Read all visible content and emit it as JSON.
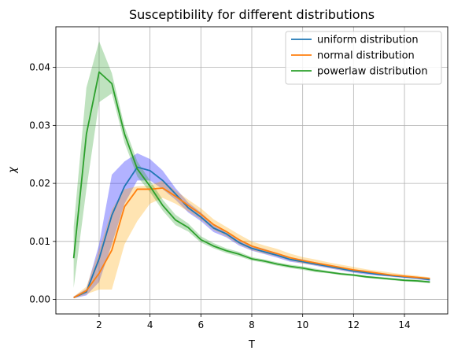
{
  "chart_data": {
    "type": "line",
    "title": "Susceptibility for different distributions",
    "xlabel": "T",
    "ylabel": "χ",
    "xlim": [
      0.3,
      15.7
    ],
    "ylim": [
      -0.0025,
      0.047
    ],
    "xticks": [
      2,
      4,
      6,
      8,
      10,
      12,
      14
    ],
    "xtick_labels": [
      "2",
      "4",
      "6",
      "8",
      "10",
      "12",
      "14"
    ],
    "yticks": [
      0.0,
      0.01,
      0.02,
      0.03,
      0.04
    ],
    "ytick_labels": [
      "0.00",
      "0.01",
      "0.02",
      "0.03",
      "0.04"
    ],
    "grid": true,
    "legend_position": "top-right",
    "series": [
      {
        "name": "uniform distribution",
        "color": "#1f77b4",
        "band_color": "#0000ff",
        "x": [
          1.0,
          1.5,
          2.0,
          2.5,
          3.0,
          3.5,
          4.0,
          4.5,
          5.0,
          5.5,
          6.0,
          6.5,
          7.0,
          7.5,
          8.0,
          8.5,
          9.0,
          9.5,
          10.0,
          10.5,
          11.0,
          11.5,
          12.0,
          12.5,
          13.0,
          13.5,
          14.0,
          14.5,
          15.0
        ],
        "y": [
          0.0003,
          0.0013,
          0.007,
          0.0145,
          0.0195,
          0.0228,
          0.0222,
          0.0205,
          0.0182,
          0.0158,
          0.0142,
          0.0123,
          0.0113,
          0.0098,
          0.0088,
          0.0082,
          0.0076,
          0.0069,
          0.0065,
          0.0061,
          0.0057,
          0.0053,
          0.0049,
          0.0046,
          0.0043,
          0.0041,
          0.0039,
          0.0037,
          0.0034
        ],
        "lower": [
          0.0002,
          0.0007,
          0.003,
          0.0095,
          0.0165,
          0.0205,
          0.0205,
          0.019,
          0.0172,
          0.015,
          0.0135,
          0.0116,
          0.0107,
          0.0093,
          0.0084,
          0.0078,
          0.0072,
          0.0065,
          0.0062,
          0.0058,
          0.0054,
          0.005,
          0.0046,
          0.0043,
          0.0041,
          0.0039,
          0.0037,
          0.0035,
          0.0032
        ],
        "upper": [
          0.0005,
          0.0018,
          0.0095,
          0.0215,
          0.0238,
          0.0252,
          0.0242,
          0.0222,
          0.0192,
          0.0167,
          0.015,
          0.013,
          0.0118,
          0.0103,
          0.0093,
          0.0087,
          0.008,
          0.0073,
          0.0069,
          0.0064,
          0.006,
          0.0056,
          0.0052,
          0.0049,
          0.0046,
          0.0043,
          0.0041,
          0.0039,
          0.0036
        ]
      },
      {
        "name": "normal distribution",
        "color": "#ff7f0e",
        "band_color": "#ffa500",
        "x": [
          1.0,
          1.5,
          2.0,
          2.5,
          3.0,
          3.5,
          4.0,
          4.5,
          5.0,
          5.5,
          6.0,
          6.5,
          7.0,
          7.5,
          8.0,
          8.5,
          9.0,
          9.5,
          10.0,
          10.5,
          11.0,
          11.5,
          12.0,
          12.5,
          13.0,
          13.5,
          14.0,
          14.5,
          15.0
        ],
        "y": [
          0.0003,
          0.0015,
          0.0045,
          0.0085,
          0.016,
          0.019,
          0.019,
          0.0192,
          0.0178,
          0.0162,
          0.0147,
          0.0129,
          0.0117,
          0.0103,
          0.0092,
          0.0085,
          0.0079,
          0.0072,
          0.0067,
          0.0063,
          0.0059,
          0.0055,
          0.0051,
          0.0048,
          0.0045,
          0.0042,
          0.004,
          0.0038,
          0.0036
        ],
        "lower": [
          0.0002,
          0.0009,
          0.0017,
          0.0017,
          0.0095,
          0.0135,
          0.0165,
          0.0175,
          0.0165,
          0.0152,
          0.0138,
          0.012,
          0.0109,
          0.0095,
          0.0085,
          0.0079,
          0.0074,
          0.0067,
          0.0062,
          0.0059,
          0.0055,
          0.0051,
          0.0047,
          0.0045,
          0.0042,
          0.004,
          0.0038,
          0.0036,
          0.0034
        ],
        "upper": [
          0.0005,
          0.0022,
          0.0085,
          0.0155,
          0.019,
          0.0195,
          0.0196,
          0.0205,
          0.0188,
          0.0172,
          0.0157,
          0.0138,
          0.0125,
          0.0112,
          0.01,
          0.0093,
          0.0087,
          0.0079,
          0.0073,
          0.0069,
          0.0064,
          0.006,
          0.0056,
          0.0052,
          0.0049,
          0.0046,
          0.0043,
          0.0041,
          0.0038
        ]
      },
      {
        "name": "powerlaw distribution",
        "color": "#2ca02c",
        "band_color": "#2ca02c",
        "x": [
          1.0,
          1.5,
          2.0,
          2.5,
          3.0,
          3.5,
          4.0,
          4.5,
          5.0,
          5.5,
          6.0,
          6.5,
          7.0,
          7.5,
          8.0,
          8.5,
          9.0,
          9.5,
          10.0,
          10.5,
          11.0,
          11.5,
          12.0,
          12.5,
          13.0,
          13.5,
          14.0,
          14.5,
          15.0
        ],
        "y": [
          0.0071,
          0.0285,
          0.0392,
          0.0372,
          0.0285,
          0.0225,
          0.0195,
          0.0162,
          0.0137,
          0.0124,
          0.0103,
          0.0092,
          0.0084,
          0.0078,
          0.007,
          0.0066,
          0.0061,
          0.0057,
          0.0054,
          0.005,
          0.0047,
          0.0044,
          0.0042,
          0.0039,
          0.0037,
          0.0035,
          0.0033,
          0.0032,
          0.003
        ],
        "lower": [
          0.002,
          0.019,
          0.034,
          0.0355,
          0.027,
          0.0212,
          0.0185,
          0.0153,
          0.0128,
          0.0117,
          0.0098,
          0.0088,
          0.008,
          0.0074,
          0.0067,
          0.0063,
          0.0058,
          0.0054,
          0.0051,
          0.0047,
          0.0045,
          0.0042,
          0.004,
          0.0037,
          0.0035,
          0.0033,
          0.0031,
          0.003,
          0.0028
        ],
        "upper": [
          0.0125,
          0.0365,
          0.0445,
          0.039,
          0.0298,
          0.0238,
          0.0205,
          0.0172,
          0.0146,
          0.0131,
          0.0109,
          0.0097,
          0.0088,
          0.0082,
          0.0073,
          0.0069,
          0.0064,
          0.006,
          0.0057,
          0.0053,
          0.0049,
          0.0046,
          0.0044,
          0.0041,
          0.0039,
          0.0037,
          0.0035,
          0.0034,
          0.0032
        ]
      }
    ]
  }
}
